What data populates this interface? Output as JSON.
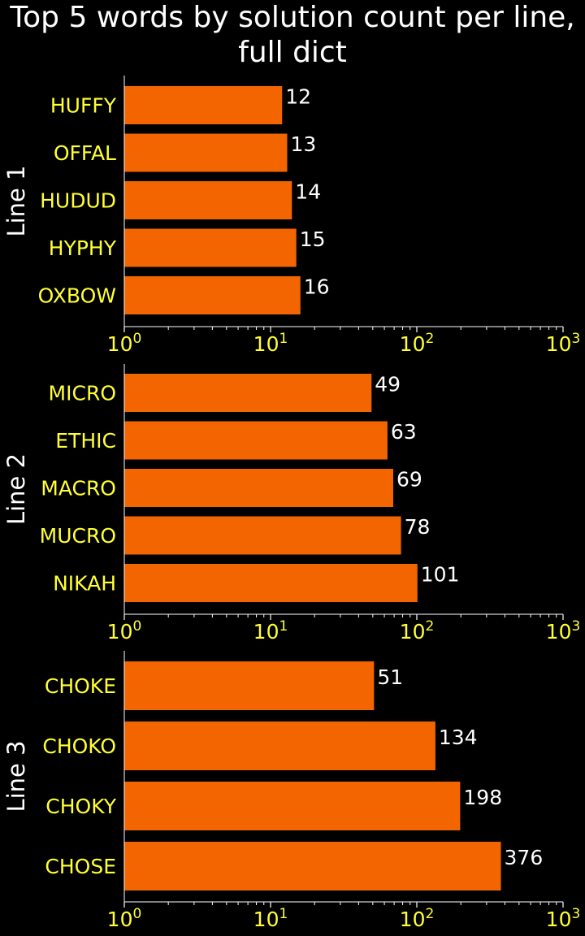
{
  "title_lines": [
    "Top 5 words by solution count per line,",
    "full dict"
  ],
  "colors": {
    "background": "#000000",
    "bar": "#f26500",
    "category_text": "#ffff33",
    "tick_text": "#ffff33",
    "value_text": "#ffffff",
    "title_text": "#ffffff",
    "axis": "#ffffff"
  },
  "chart_data": [
    {
      "type": "bar",
      "orientation": "horizontal",
      "xscale": "log",
      "xlim": [
        1,
        1000
      ],
      "ylabel": "Line 1",
      "categories": [
        "HUFFY",
        "OFFAL",
        "HUDUD",
        "HYPHY",
        "OXBOW"
      ],
      "values": [
        12,
        13,
        14,
        15,
        16
      ],
      "data_labels": [
        "12",
        "13",
        "14",
        "15",
        "16"
      ],
      "tick_labels": [
        {
          "base": "10",
          "exp": "0",
          "value": 1
        },
        {
          "base": "10",
          "exp": "1",
          "value": 10
        },
        {
          "base": "10",
          "exp": "2",
          "value": 100
        },
        {
          "base": "10",
          "exp": "3",
          "value": 1000
        }
      ]
    },
    {
      "type": "bar",
      "orientation": "horizontal",
      "xscale": "log",
      "xlim": [
        1,
        1000
      ],
      "ylabel": "Line 2",
      "categories": [
        "MICRO",
        "ETHIC",
        "MACRO",
        "MUCRO",
        "NIKAH"
      ],
      "values": [
        49,
        63,
        69,
        78,
        101
      ],
      "data_labels": [
        "49",
        "63",
        "69",
        "78",
        "101"
      ],
      "tick_labels": [
        {
          "base": "10",
          "exp": "0",
          "value": 1
        },
        {
          "base": "10",
          "exp": "1",
          "value": 10
        },
        {
          "base": "10",
          "exp": "2",
          "value": 100
        },
        {
          "base": "10",
          "exp": "3",
          "value": 1000
        }
      ]
    },
    {
      "type": "bar",
      "orientation": "horizontal",
      "xscale": "log",
      "xlim": [
        1,
        1000
      ],
      "ylabel": "Line 3",
      "categories": [
        "CHOKE",
        "CHOKO",
        "CHOKY",
        "CHOSE"
      ],
      "values": [
        51,
        134,
        198,
        376
      ],
      "data_labels": [
        "51",
        "134",
        "198",
        "376"
      ],
      "tick_labels": [
        {
          "base": "10",
          "exp": "0",
          "value": 1
        },
        {
          "base": "10",
          "exp": "1",
          "value": 10
        },
        {
          "base": "10",
          "exp": "2",
          "value": 100
        },
        {
          "base": "10",
          "exp": "3",
          "value": 1000
        }
      ]
    }
  ]
}
